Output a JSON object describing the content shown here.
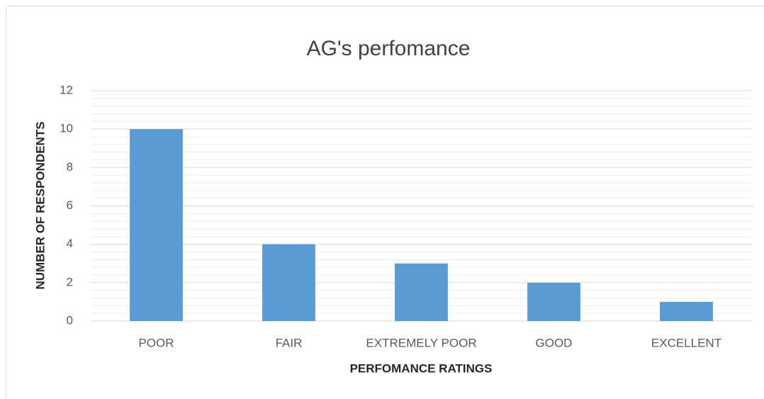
{
  "chart_data": {
    "type": "bar",
    "title": "AG's perfomance",
    "x_label": "PERFOMANCE RATINGS",
    "y_label": "NUMBER OF RESPONDENTS",
    "categories": [
      "POOR",
      "FAIR",
      "EXTREMELY POOR",
      "GOOD",
      "EXCELLENT"
    ],
    "values": [
      10,
      4,
      3,
      2,
      1
    ],
    "color": "#5b9bd5",
    "ylim": [
      0,
      12
    ],
    "yticks": [
      0,
      2,
      4,
      6,
      8,
      10,
      12
    ],
    "grid": true,
    "minor_grid": true
  }
}
